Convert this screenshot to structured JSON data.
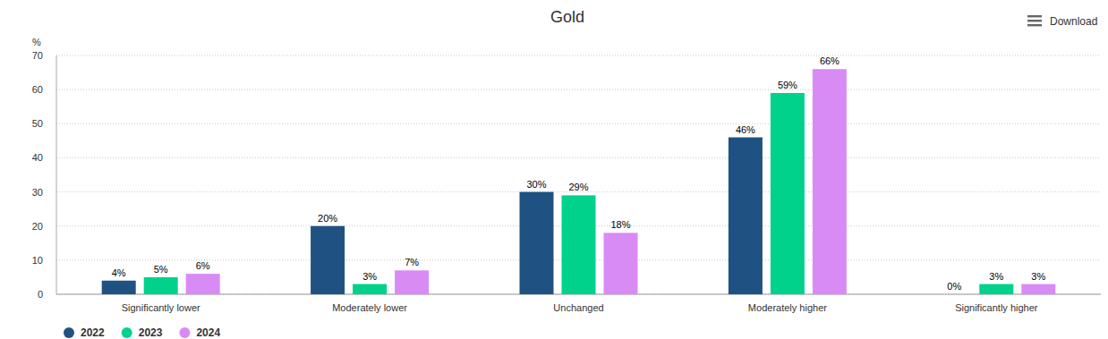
{
  "chart_data": {
    "type": "bar",
    "title": "Gold",
    "ylabel": "%",
    "annotations": [
      "Download"
    ],
    "categories": [
      "Significantly lower",
      "Moderately lower",
      "Unchanged",
      "Moderately higher",
      "Significantly higher"
    ],
    "series": [
      {
        "name": "2022",
        "color": "#1f5282",
        "values": [
          4,
          20,
          30,
          46,
          0
        ],
        "value_labels": [
          "4%",
          "20%",
          "30%",
          "46%",
          "0%"
        ]
      },
      {
        "name": "2023",
        "color": "#00d28c",
        "values": [
          5,
          3,
          29,
          59,
          3
        ],
        "value_labels": [
          "5%",
          "3%",
          "29%",
          "59%",
          "3%"
        ]
      },
      {
        "name": "2024",
        "color": "#d98bf5",
        "values": [
          6,
          7,
          18,
          66,
          3
        ],
        "value_labels": [
          "6%",
          "7%",
          "18%",
          "66%",
          "3%"
        ]
      }
    ],
    "ylim": [
      0,
      70
    ],
    "yticks": [
      0,
      10,
      20,
      30,
      40,
      50,
      60,
      70
    ],
    "grid": true,
    "data_labels": true,
    "legend": "bottom-left"
  }
}
